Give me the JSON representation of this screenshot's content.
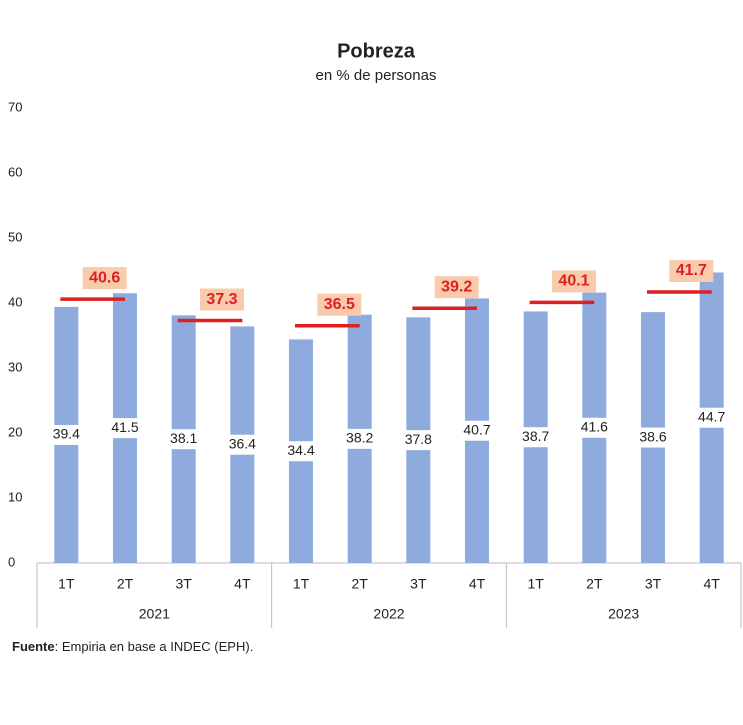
{
  "chart_data": {
    "type": "bar",
    "title": "Pobreza",
    "subtitle": "en % de personas",
    "categories": [
      "1T",
      "2T",
      "3T",
      "4T",
      "1T",
      "2T",
      "3T",
      "4T",
      "1T",
      "2T",
      "3T",
      "4T"
    ],
    "years": [
      "2021",
      "2022",
      "2023"
    ],
    "values": [
      39.4,
      41.5,
      38.1,
      36.4,
      34.4,
      38.2,
      37.8,
      40.7,
      38.7,
      41.6,
      38.6,
      44.7
    ],
    "color": "#8faadc",
    "semester_averages": {
      "values": [
        40.6,
        37.3,
        36.5,
        39.2,
        40.1,
        41.7
      ],
      "color": "#e02020"
    },
    "ylim": [
      0,
      70
    ],
    "yticks": [
      0,
      10,
      20,
      30,
      40,
      50,
      60,
      70
    ],
    "footnote_label": "Fuente",
    "footnote_text": ": Empiria en base a INDEC (EPH)."
  }
}
